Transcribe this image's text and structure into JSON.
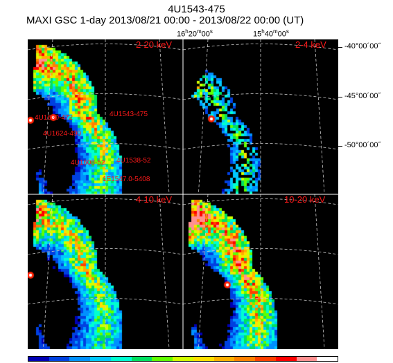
{
  "header": {
    "source_name": "4U1543-475",
    "subtitle": "MAXI GSC 1-day 2013/08/21 00:00 - 2013/08/22 00:00 (UT)"
  },
  "ra_labels": [
    {
      "h": "16",
      "m": "20",
      "s": "00"
    },
    {
      "h": "15",
      "m": "40",
      "s": "00"
    }
  ],
  "dec_labels": [
    "-40°00´00˝",
    "-45°00´00˝",
    "-50°00´00˝"
  ],
  "panels": [
    {
      "energy": "2-20 keV"
    },
    {
      "energy": "2-4 keV"
    },
    {
      "energy": "4-10 keV"
    },
    {
      "energy": "10-20 keV"
    }
  ],
  "sources": [
    "4U1630-472",
    "4U1543-475",
    "4U1624-490",
    "4U1608-52",
    "4U1538-52",
    "1E1547.0-5408"
  ],
  "colors": {
    "label": "#ff1a1a",
    "colorbar": [
      "#0000b4",
      "#0040e0",
      "#0090ff",
      "#00c8ff",
      "#00ffd0",
      "#00e060",
      "#60ff00",
      "#d0ff00",
      "#ffe000",
      "#ffb000",
      "#ff8000",
      "#ff4000",
      "#ff0000",
      "#ff9090",
      "#ffffff"
    ]
  }
}
